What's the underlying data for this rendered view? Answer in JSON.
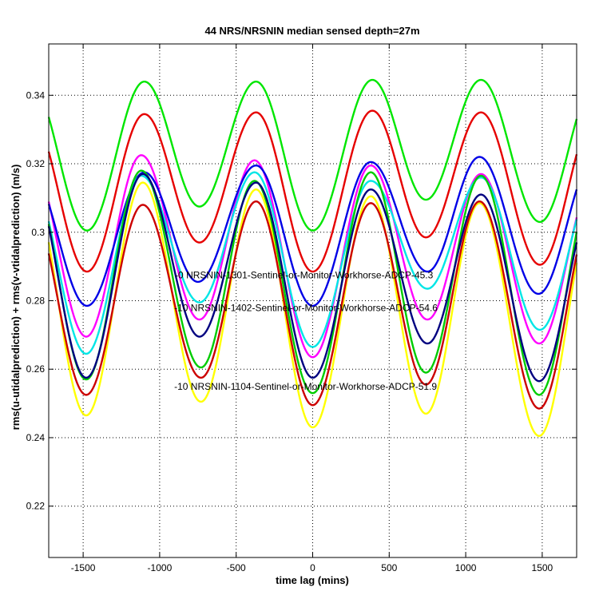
{
  "chart_data": {
    "type": "line",
    "title": "44 NRS/NRSNIN median sensed depth=27m",
    "xlabel": "time lag (mins)",
    "ylabel": "rms(u-utidalprediction) + rms(v-vtidalprediction) (m/s)",
    "xlim": [
      -1725,
      1725
    ],
    "ylim": [
      0.205,
      0.355
    ],
    "xticks": [
      -1500,
      -1000,
      -500,
      0,
      500,
      1000,
      1500
    ],
    "yticks": [
      0.22,
      0.24,
      0.26,
      0.28,
      0.3,
      0.32,
      0.34
    ],
    "ytick_labels": [
      "0.22",
      "0.24",
      "0.26",
      "0.28",
      "0.3",
      "0.32",
      "0.34"
    ],
    "grid": true,
    "period_mins": 740,
    "series": [
      {
        "name": "green-upper",
        "color": "#00e600",
        "peaks_x": [
          -1100,
          -370,
          390,
          1100
        ],
        "peaks_y": [
          0.344,
          0.344,
          0.3445,
          0.3445
        ],
        "troughs_x": [
          -1475,
          -740,
          0,
          740,
          1485
        ],
        "troughs_y": [
          0.3005,
          0.3075,
          0.3005,
          0.3095,
          0.303
        ]
      },
      {
        "name": "red-upper",
        "color": "#e60000",
        "peaks_x": [
          -1100,
          -370,
          390,
          1100
        ],
        "peaks_y": [
          0.3345,
          0.335,
          0.3355,
          0.335
        ],
        "troughs_x": [
          -1475,
          -740,
          0,
          740,
          1485
        ],
        "troughs_y": [
          0.2885,
          0.297,
          0.2885,
          0.2985,
          0.2905
        ]
      },
      {
        "name": "magenta",
        "color": "#ff00ff",
        "peaks_x": [
          -1120,
          -380,
          380,
          1100
        ],
        "peaks_y": [
          0.3225,
          0.321,
          0.3195,
          0.317
        ],
        "troughs_x": [
          -1480,
          -740,
          0,
          750,
          1480
        ],
        "troughs_y": [
          0.2695,
          0.2745,
          0.2635,
          0.2745,
          0.2675
        ]
      },
      {
        "name": "blue-upper",
        "color": "#0000e6",
        "peaks_x": [
          -1100,
          -370,
          380,
          1090
        ],
        "peaks_y": [
          0.3175,
          0.3195,
          0.3205,
          0.322
        ],
        "troughs_x": [
          -1475,
          -750,
          0,
          750,
          1475
        ],
        "troughs_y": [
          0.2785,
          0.2855,
          0.2785,
          0.2885,
          0.282
        ]
      },
      {
        "name": "cyan",
        "color": "#00e6e6",
        "peaks_x": [
          -1120,
          -380,
          380,
          1100
        ],
        "peaks_y": [
          0.3165,
          0.3175,
          0.315,
          0.316
        ],
        "troughs_x": [
          -1480,
          -740,
          0,
          750,
          1485
        ],
        "troughs_y": [
          0.2645,
          0.2795,
          0.2665,
          0.2835,
          0.2715
        ]
      },
      {
        "name": "green-lower",
        "color": "#00cc00",
        "peaks_x": [
          -1120,
          -380,
          380,
          1100
        ],
        "peaks_y": [
          0.318,
          0.315,
          0.3175,
          0.3165
        ],
        "troughs_x": [
          -1480,
          -730,
          0,
          740,
          1480
        ],
        "troughs_y": [
          0.257,
          0.2605,
          0.253,
          0.259,
          0.2525
        ]
      },
      {
        "name": "navy",
        "color": "#000080",
        "peaks_x": [
          -1110,
          -370,
          380,
          1100
        ],
        "peaks_y": [
          0.317,
          0.3145,
          0.3125,
          0.311
        ],
        "troughs_x": [
          -1480,
          -740,
          0,
          750,
          1480
        ],
        "troughs_y": [
          0.2575,
          0.2695,
          0.2575,
          0.2675,
          0.2565
        ]
      },
      {
        "name": "yellow",
        "color": "#ffff00",
        "peaks_x": [
          -1110,
          -370,
          380,
          1090
        ],
        "peaks_y": [
          0.3145,
          0.3125,
          0.3105,
          0.3085
        ],
        "troughs_x": [
          -1480,
          -730,
          0,
          740,
          1480
        ],
        "troughs_y": [
          0.2465,
          0.2505,
          0.243,
          0.247,
          0.2405
        ]
      },
      {
        "name": "red-lower",
        "color": "#cc0000",
        "peaks_x": [
          -1110,
          -370,
          380,
          1090
        ],
        "peaks_y": [
          0.308,
          0.309,
          0.3085,
          0.309
        ],
        "troughs_x": [
          -1480,
          -730,
          0,
          740,
          1480
        ],
        "troughs_y": [
          0.2525,
          0.2575,
          0.2495,
          0.2555,
          0.2485
        ]
      }
    ],
    "annotations": [
      {
        "text": "-0 NRSNIN-1301-Sentinel-or-Monitor-Workhorse-ADCP-45.3",
        "x": -900,
        "y": 0.2865
      },
      {
        "text": "-10 NRSNIN-1402-Sentinel-or-Monitor-Workhorse-ADCP-54.6",
        "x": -905,
        "y": 0.277
      },
      {
        "text": "-10 NRSNIN-1104-Sentinel-or-Monitor-Workhorse-ADCP-51.9",
        "x": -905,
        "y": 0.254
      }
    ]
  }
}
